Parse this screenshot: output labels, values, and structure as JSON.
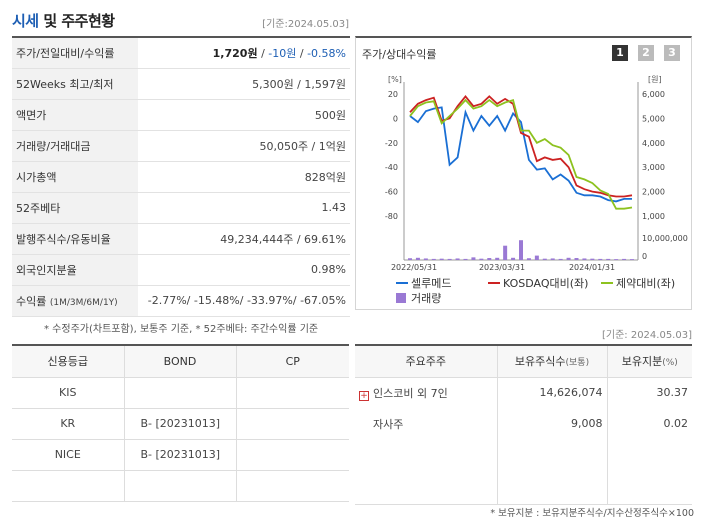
{
  "header": {
    "title_part1": "시세",
    "title_part2": " 및 주주현황",
    "date": "[기준:2024.05.03]"
  },
  "stats": [
    {
      "label": "주가/전일대비/수익률",
      "v1": "1,720원",
      "sep1": " / ",
      "v2": "-10원",
      "sep2": " / ",
      "v3": "-0.58%"
    },
    {
      "label": "52Weeks 최고/최저",
      "value": "5,300원 / 1,597원"
    },
    {
      "label": "액면가",
      "value": "500원"
    },
    {
      "label": "거래량/거래대금",
      "value": "50,050주 / 1억원"
    },
    {
      "label": "시가총액",
      "value": "828억원"
    },
    {
      "label": "52주베타",
      "value": "1.43"
    },
    {
      "label": "발행주식수/유동비율",
      "value": "49,234,444주 / 69.61%"
    },
    {
      "label": "외국인지분율",
      "value": "0.98%"
    },
    {
      "label": "수익률",
      "label_small": "(1M/3M/6M/1Y)",
      "value": "-2.77%/ -15.48%/ -33.97%/ -67.05%"
    }
  ],
  "footnote1": "* 수정주가(차트포함), 보통주 기준, * 52주베타: 주간수익률 기준",
  "chart": {
    "title": "주가/상대수익률",
    "pages": [
      "1",
      "2",
      "3"
    ],
    "left_unit": "[%]",
    "right_unit": "[원]",
    "left_ticks": [
      "20",
      "0",
      "-20",
      "-40",
      "-60",
      "-80"
    ],
    "right_ticks": [
      "6,000",
      "5,000",
      "4,000",
      "3,000",
      "2,000",
      "1,000"
    ],
    "volume_ticks": [
      "10,000,000",
      "0"
    ],
    "x_ticks": [
      "2022/05/31",
      "2023/03/31",
      "2024/01/31"
    ],
    "legend": [
      {
        "name": "셀루메드",
        "color": "#1a6fd4"
      },
      {
        "name": "KOSDAQ대비(좌)",
        "color": "#cc2222"
      },
      {
        "name": "제약대비(좌)",
        "color": "#8dc21f"
      },
      {
        "name": "거래량",
        "color": "#9a79d4"
      }
    ]
  },
  "chart_data": {
    "type": "line",
    "ylabel_left": "[%]",
    "ylabel_right": "[원]",
    "ylim_left": [
      -80,
      20
    ],
    "ylim_right": [
      1000,
      6000
    ],
    "x_labels": [
      "2022/05/31",
      "2023/03/31",
      "2024/01/31"
    ],
    "series": [
      {
        "name": "셀루메드",
        "axis": "right",
        "values": [
          5100,
          4850,
          5300,
          5400,
          5450,
          3100,
          3400,
          5250,
          4500,
          5100,
          4700,
          5100,
          4500,
          5200,
          4850,
          3300,
          2900,
          2950,
          2500,
          2700,
          2450,
          1950,
          1850,
          1850,
          1800,
          1650,
          1600,
          1700,
          1700
        ]
      },
      {
        "name": "KOSDAQ대비(좌)",
        "axis": "left",
        "values": [
          5,
          12,
          15,
          17,
          -2,
          0,
          10,
          18,
          10,
          12,
          18,
          12,
          16,
          12,
          -12,
          -15,
          -35,
          -32,
          -34,
          -33,
          -40,
          -55,
          -58,
          -60,
          -61,
          -63,
          -64,
          -64,
          -63
        ]
      },
      {
        "name": "제약대비(좌)",
        "axis": "left",
        "values": [
          2,
          10,
          13,
          14,
          -4,
          2,
          8,
          15,
          8,
          10,
          15,
          10,
          13,
          15,
          -10,
          -10,
          -20,
          -17,
          -22,
          -24,
          -30,
          -48,
          -50,
          -53,
          -59,
          -62,
          -74,
          -74,
          -73
        ]
      },
      {
        "name": "거래량",
        "axis": "volume",
        "values": [
          800000,
          1000000,
          700000,
          500000,
          600000,
          500000,
          700000,
          500000,
          1200000,
          600000,
          900000,
          1000000,
          6500000,
          1000000,
          9000000,
          800000,
          2000000,
          600000,
          700000,
          500000,
          1000000,
          900000,
          700000,
          600000,
          500000,
          500000,
          400000,
          500000,
          400000
        ]
      }
    ]
  },
  "date2": "[기준: 2024.05.03]",
  "credit": {
    "headers": [
      "신용등급",
      "BOND",
      "CP"
    ],
    "rows": [
      [
        "KIS",
        "",
        ""
      ],
      [
        "KR",
        "B-  [20231013]",
        ""
      ],
      [
        "NICE",
        "B-  [20231013]",
        ""
      ]
    ]
  },
  "holders": {
    "headers": [
      "주요주주",
      "보유주식수",
      "(보통)",
      "보유지분",
      "(%)"
    ],
    "rows": [
      {
        "name": "인스코비 외 7인",
        "shares": "14,626,074",
        "pct": "30.37"
      },
      {
        "name": "자사주",
        "shares": "9,008",
        "pct": "0.02"
      }
    ]
  },
  "footnote2": "* 보유지분 : 보유지분주식수/지수산정주식수×100"
}
